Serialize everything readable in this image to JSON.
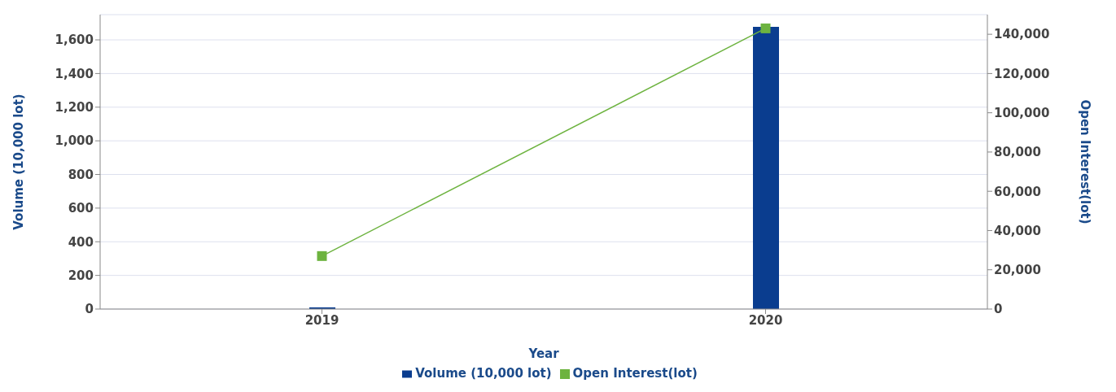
{
  "chart_data": {
    "type": "bar",
    "xlabel": "Year",
    "ylabel": "Volume (10,000 lot)",
    "y2label": "Open Interest(lot)",
    "categories": [
      "2019",
      "2020"
    ],
    "series": [
      {
        "name": "Volume (10,000 lot)",
        "color": "#0a3d8f",
        "values": [
          10,
          1677
        ]
      },
      {
        "name": "Open Interest(lot)",
        "type": "line",
        "axis": "y2",
        "color": "#6db33f",
        "marker": "square",
        "values": [
          27000,
          143000
        ]
      }
    ],
    "ylim": [
      0,
      1750
    ],
    "yticks": [
      0,
      200,
      400,
      600,
      800,
      {
        "value": 1000,
        "label": "1,000"
      },
      {
        "value": 1200,
        "label": "1,200"
      },
      {
        "value": 1400,
        "label": "1,400"
      },
      {
        "value": 1600,
        "label": "1,600"
      }
    ],
    "y2lim": [
      0,
      150000
    ],
    "y2ticks": [
      0,
      {
        "value": 20000,
        "label": "20,000"
      },
      {
        "value": 40000,
        "label": "40,000"
      },
      {
        "value": 60000,
        "label": "60,000"
      },
      {
        "value": 80000,
        "label": "80,000"
      },
      {
        "value": 100000,
        "label": "100,000"
      },
      {
        "value": 120000,
        "label": "120,000"
      },
      {
        "value": 140000,
        "label": "140,000"
      }
    ],
    "grid": "y",
    "legend": "bottom"
  }
}
